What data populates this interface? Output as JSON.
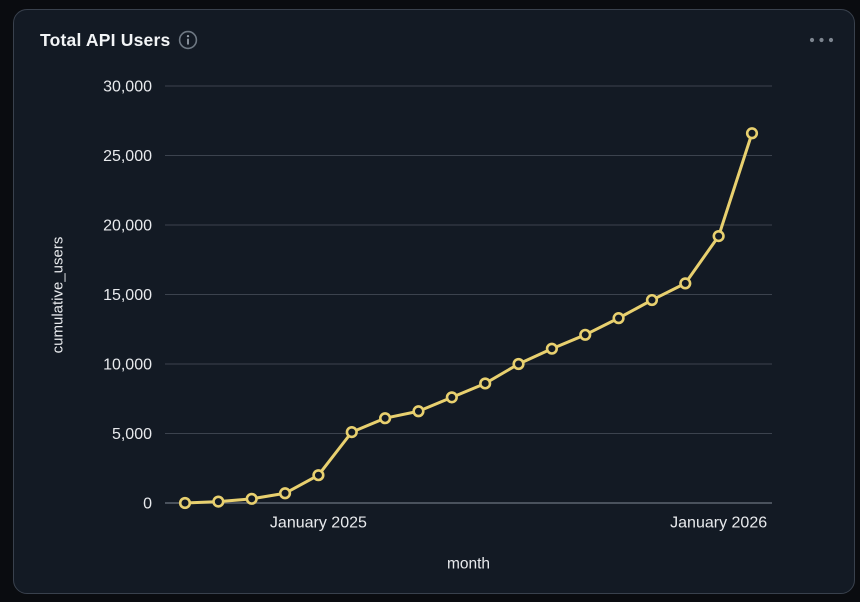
{
  "card": {
    "title": "Total API Users",
    "info_icon": "info-circle",
    "menu_icon": "ellipsis"
  },
  "colors": {
    "page_bg": "#0a0c10",
    "card_bg": "#131a24",
    "card_border": "#39414d",
    "title_text": "#f2f4f6",
    "tick_text": "#e8eaed",
    "grid_line": "#3c434e",
    "axis_line": "#5c6470",
    "series_line": "#e8d06f",
    "marker_fill": "#131a24",
    "icon_gray": "#7d858f"
  },
  "chart_data": {
    "type": "line",
    "title": "Total API Users",
    "xlabel": "month",
    "ylabel": "cumulative_users",
    "x": [
      "Sep 2024",
      "Oct 2024",
      "Nov 2024",
      "Dec 2024",
      "Jan 2025",
      "Feb 2025",
      "Mar 2025",
      "Apr 2025",
      "May 2025",
      "Jun 2025",
      "Jul 2025",
      "Aug 2025",
      "Sep 2025",
      "Oct 2025",
      "Nov 2025",
      "Dec 2025",
      "Jan 2026",
      "Feb 2026"
    ],
    "series": [
      {
        "name": "cumulative_users",
        "values": [
          0,
          100,
          300,
          700,
          2000,
          5100,
          6100,
          6600,
          7600,
          8600,
          10000,
          11100,
          12100,
          13300,
          14600,
          15800,
          19200,
          26600
        ]
      }
    ],
    "x_tick_labels": [
      {
        "index": 4,
        "label": "January 2025"
      },
      {
        "index": 16,
        "label": "January 2026"
      }
    ],
    "y_ticks": [
      {
        "value": 0,
        "label": "0"
      },
      {
        "value": 5000,
        "label": "5,000"
      },
      {
        "value": 10000,
        "label": "10,000"
      },
      {
        "value": 15000,
        "label": "15,000"
      },
      {
        "value": 20000,
        "label": "20,000"
      },
      {
        "value": 25000,
        "label": "25,000"
      },
      {
        "value": 30000,
        "label": "30,000"
      }
    ],
    "ylim": [
      0,
      30000
    ],
    "grid": true,
    "legend": false,
    "marker": "open-circle"
  }
}
